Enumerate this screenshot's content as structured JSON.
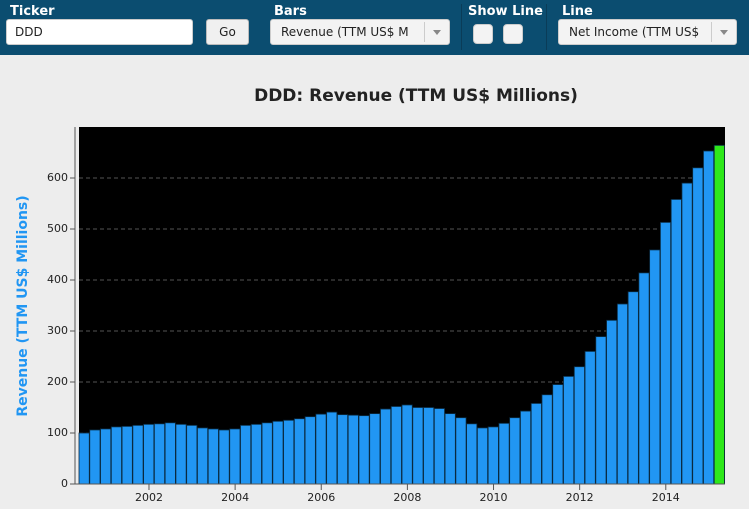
{
  "toolbar": {
    "ticker_label": "Ticker",
    "ticker_value": "DDD",
    "go_button": "Go",
    "bars_label": "Bars",
    "bars_value": "Revenue (TTM US$ M",
    "show_line_label": "Show Line",
    "line_label": "Line",
    "line_value": "Net Income (TTM US$"
  },
  "chart_data": {
    "type": "bar",
    "title": "DDD: Revenue (TTM US$ Millions)",
    "y_label": "Revenue (TTM US$ Millions)",
    "categories": [
      null,
      null,
      null,
      null,
      null,
      null,
      "2002",
      null,
      null,
      null,
      null,
      null,
      null,
      null,
      "2004",
      null,
      null,
      null,
      null,
      null,
      null,
      null,
      "2006",
      null,
      null,
      null,
      null,
      null,
      null,
      null,
      "2008",
      null,
      null,
      null,
      null,
      null,
      null,
      null,
      "2010",
      null,
      null,
      null,
      null,
      null,
      null,
      null,
      "2012",
      null,
      null,
      null,
      null,
      null,
      null,
      null,
      "2014",
      null,
      null,
      null,
      null,
      null
    ],
    "values": [
      100,
      106,
      108,
      112,
      113,
      115,
      117,
      118,
      120,
      117,
      115,
      110,
      108,
      106,
      108,
      115,
      117,
      120,
      123,
      125,
      128,
      132,
      137,
      141,
      136,
      135,
      134,
      138,
      147,
      152,
      155,
      150,
      150,
      148,
      138,
      130,
      118,
      110,
      112,
      119,
      130,
      143,
      158,
      175,
      195,
      211,
      230,
      260,
      289,
      321,
      353,
      377,
      414,
      459,
      513,
      558,
      590,
      620,
      653,
      664
    ],
    "color": "#2196f3",
    "last_color": "#2ee81a",
    "ylim": [
      0,
      700
    ],
    "yticks": [
      0,
      100,
      200,
      300,
      400,
      500,
      600
    ],
    "grid": true
  }
}
